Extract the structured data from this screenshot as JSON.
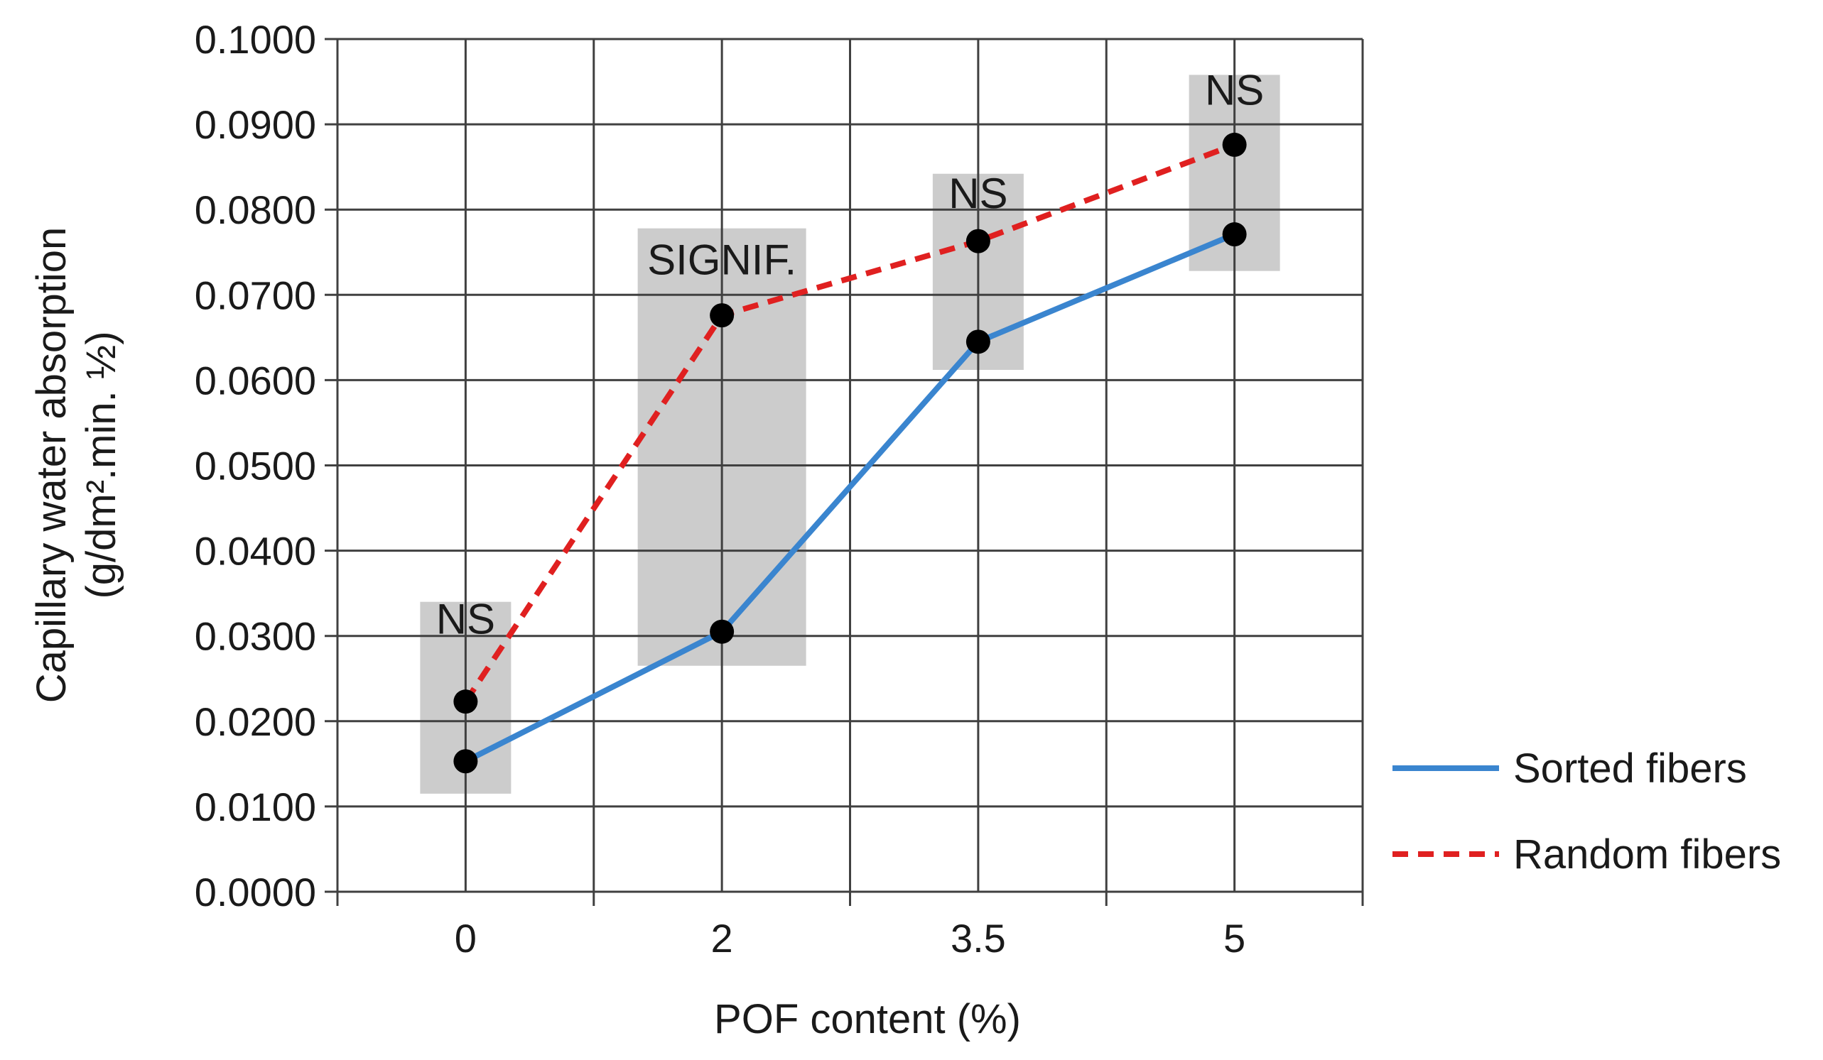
{
  "chart_data": {
    "type": "line",
    "categories": [
      "0",
      "2",
      "3.5",
      "5"
    ],
    "xlabel": "POF content (%)",
    "ylabel": "Capillary water absorption",
    "ylabel_units": "(g/dm².min. ½)",
    "ylim": [
      0,
      0.1
    ],
    "yticks": [
      "0.0000",
      "0.0100",
      "0.0200",
      "0.0300",
      "0.0400",
      "0.0500",
      "0.0600",
      "0.0700",
      "0.0800",
      "0.0900",
      "0.1000"
    ],
    "grid": true,
    "legend_position": "right",
    "series": [
      {
        "name": "Sorted fibers",
        "values": [
          0.0153,
          0.0305,
          0.0645,
          0.0771
        ],
        "color": "#3a85cf",
        "style": "solid"
      },
      {
        "name": "Random fibers",
        "values": [
          0.0223,
          0.0676,
          0.0763,
          0.0876
        ],
        "color": "#e02020",
        "style": "dashed"
      }
    ],
    "annotations": [
      {
        "label": "NS",
        "category": "0",
        "range": [
          0.0115,
          0.034
        ]
      },
      {
        "label": "SIGNIF.",
        "category": "2",
        "range": [
          0.0265,
          0.0778
        ]
      },
      {
        "label": "NS",
        "category": "3.5",
        "range": [
          0.0612,
          0.0842
        ]
      },
      {
        "label": "NS",
        "category": "5",
        "range": [
          0.0728,
          0.0958
        ]
      }
    ],
    "marker_color": "#000000",
    "band_color": "#cccccc"
  }
}
